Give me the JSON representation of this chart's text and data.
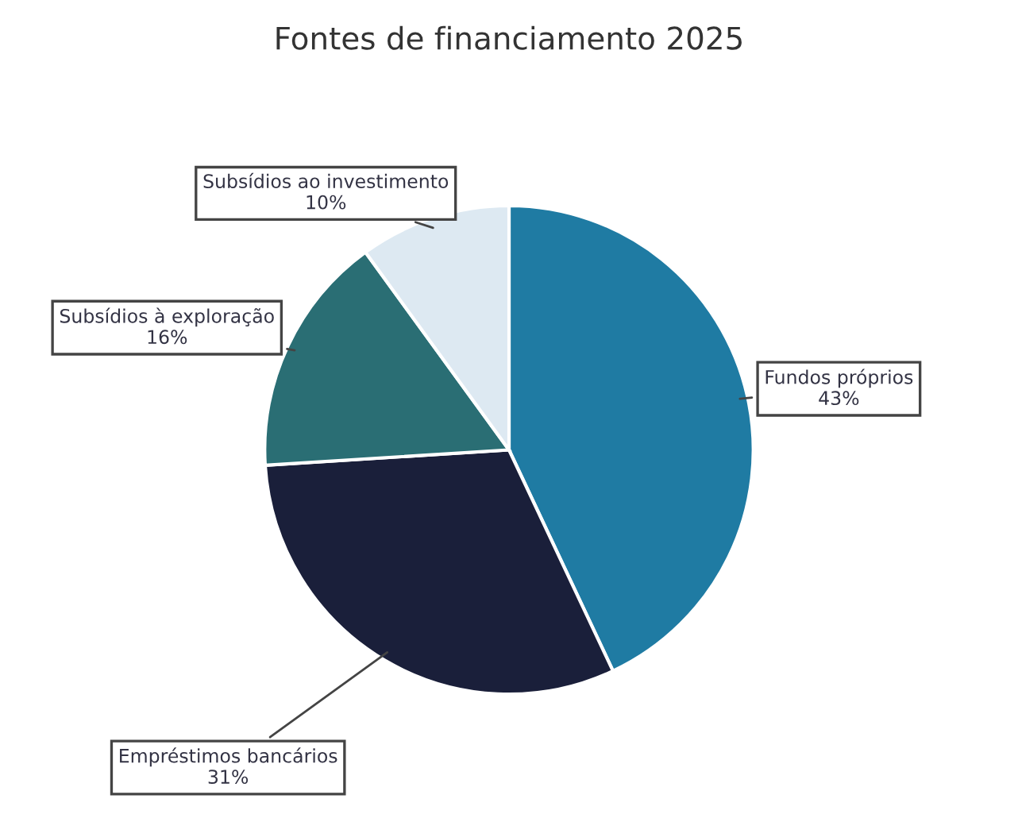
{
  "chart_data": {
    "type": "pie",
    "title": "Fontes de financiamento 2025",
    "categories": [
      "Fundos próprios",
      "Empréstimos bancários",
      "Subsídios à exploração",
      "Subsídios ao investimento"
    ],
    "values": [
      43,
      31,
      16,
      10
    ],
    "colors": [
      "#1f7ba3",
      "#1a1f3a",
      "#2a6e74",
      "#dde9f2"
    ],
    "value_labels": [
      "43%",
      "31%",
      "16%",
      "10%"
    ],
    "legend": false
  }
}
